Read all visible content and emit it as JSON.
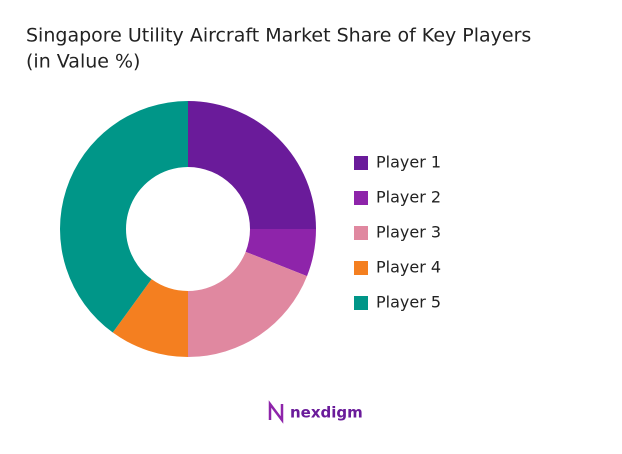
{
  "chart_data": {
    "type": "donut",
    "title": [
      "Singapore Utility Aircraft Market Share of Key Players",
      "(in Value %)"
    ],
    "categories": [
      "Player 1",
      "Player 2",
      "Player 3",
      "Player 4",
      "Player 5"
    ],
    "values": [
      25,
      6,
      19,
      10,
      40
    ],
    "colors": [
      "#6a1b9a",
      "#8e24aa",
      "#e088a0",
      "#f47f20",
      "#009688"
    ],
    "legend": "right"
  },
  "brand": "nexdigm"
}
